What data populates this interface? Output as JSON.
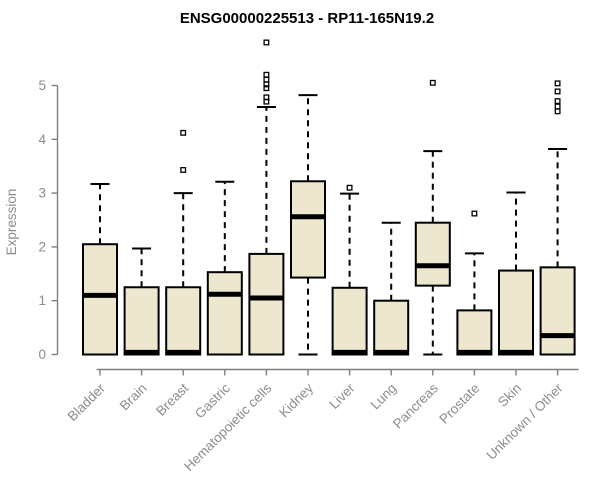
{
  "chart_data": {
    "type": "boxplot",
    "title": "ENSG00000225513 - RP11-165N19.2",
    "ylabel": "Expression",
    "yticks": [
      0,
      1,
      2,
      3,
      4,
      5
    ],
    "ylim": [
      0,
      5.9
    ],
    "grid": false,
    "categories": [
      "Bladder",
      "Brain",
      "Breast",
      "Gastric",
      "Hematopoietic cells",
      "Kidney",
      "Liver",
      "Lung",
      "Pancreas",
      "Prostate",
      "Skin",
      "Unknown / Other"
    ],
    "boxes": [
      {
        "category": "Bladder",
        "low": 0,
        "q1": 0,
        "median": 1.1,
        "q3": 2.05,
        "high": 3.17,
        "outliers": []
      },
      {
        "category": "Brain",
        "low": 0,
        "q1": 0,
        "median": 0.04,
        "q3": 1.25,
        "high": 1.97,
        "outliers": []
      },
      {
        "category": "Breast",
        "low": 0,
        "q1": 0,
        "median": 0.04,
        "q3": 1.25,
        "high": 3.0,
        "outliers": [
          3.43,
          4.12
        ]
      },
      {
        "category": "Gastric",
        "low": 0,
        "q1": 0,
        "median": 1.12,
        "q3": 1.53,
        "high": 3.21,
        "outliers": []
      },
      {
        "category": "Hematopoietic cells",
        "low": 0,
        "q1": 0,
        "median": 1.05,
        "q3": 1.87,
        "high": 4.6,
        "outliers": [
          4.7,
          4.78,
          4.95,
          5.02,
          5.11,
          5.2,
          5.8
        ]
      },
      {
        "category": "Kidney",
        "low": 0,
        "q1": 1.43,
        "median": 2.56,
        "q3": 3.22,
        "high": 4.82,
        "outliers": []
      },
      {
        "category": "Liver",
        "low": 0,
        "q1": 0,
        "median": 0.04,
        "q3": 1.24,
        "high": 2.99,
        "outliers": [
          3.1
        ]
      },
      {
        "category": "Lung",
        "low": 0,
        "q1": 0,
        "median": 0.04,
        "q3": 1.0,
        "high": 2.45,
        "outliers": []
      },
      {
        "category": "Pancreas",
        "low": 0,
        "q1": 1.28,
        "median": 1.65,
        "q3": 2.45,
        "high": 3.78,
        "outliers": [
          5.05
        ]
      },
      {
        "category": "Prostate",
        "low": 0,
        "q1": 0,
        "median": 0.04,
        "q3": 0.82,
        "high": 1.88,
        "outliers": [
          2.62
        ]
      },
      {
        "category": "Skin",
        "low": 0,
        "q1": 0,
        "median": 0.04,
        "q3": 1.56,
        "high": 3.01,
        "outliers": []
      },
      {
        "category": "Unknown / Other",
        "low": 0,
        "q1": 0,
        "median": 0.35,
        "q3": 1.62,
        "high": 3.82,
        "outliers": [
          4.52,
          4.61,
          4.71,
          4.89,
          5.04
        ]
      }
    ],
    "colors": {
      "box_fill": "#ece7ce",
      "box_border": "#000000",
      "median": "#000000",
      "whisker": "#000000",
      "outlier": "#000000",
      "axis": "#7f7f7f",
      "tick_label": "#8c8c8c",
      "title": "#000000",
      "background": "#ffffff"
    }
  }
}
